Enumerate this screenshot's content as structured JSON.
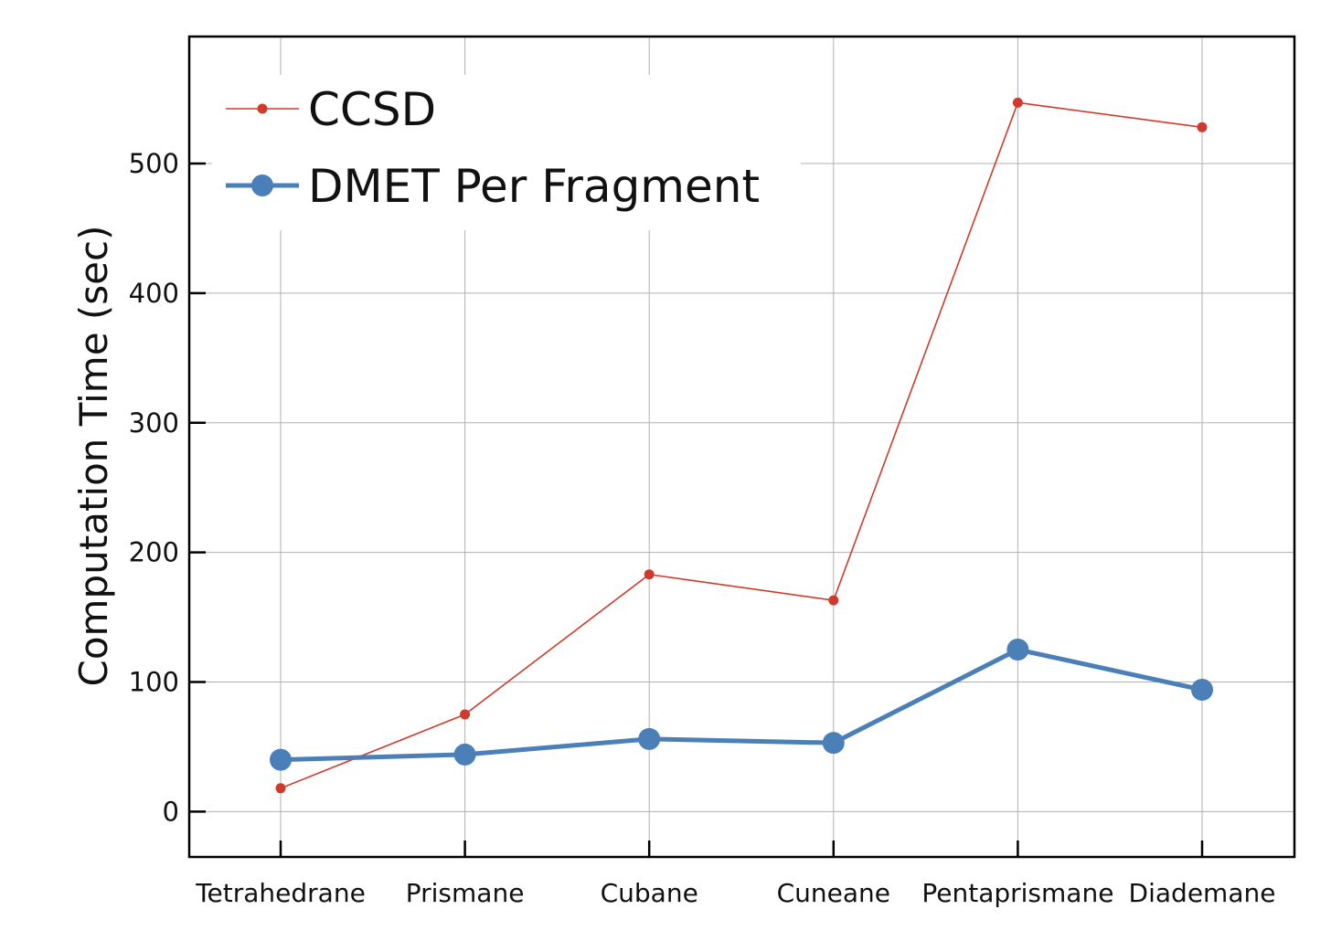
{
  "chart_data": {
    "type": "line",
    "title": "",
    "xlabel": "",
    "ylabel": "Computation Time (sec)",
    "categories": [
      "Tetrahedrane",
      "Prismane",
      "Cubane",
      "Cuneane",
      "Pentaprismane",
      "Diademane"
    ],
    "ylim": [
      -35,
      598
    ],
    "yticks": [
      0,
      100,
      200,
      300,
      400,
      500
    ],
    "grid": true,
    "legend_position": "top-left",
    "series": [
      {
        "name": "CCSD",
        "color": "#d03a2c",
        "marker": "small-circle",
        "values": [
          18,
          75,
          183,
          163,
          547,
          528
        ]
      },
      {
        "name": "DMET Per Fragment",
        "color": "#4a7fb8",
        "marker": "large-circle",
        "values": [
          40,
          44,
          56,
          53,
          125,
          94
        ]
      }
    ]
  }
}
